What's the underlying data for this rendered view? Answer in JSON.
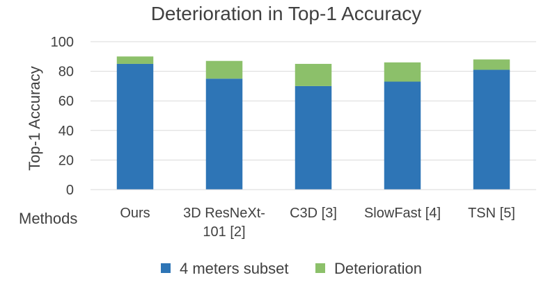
{
  "chart_data": {
    "type": "bar",
    "stacked": true,
    "title": "Deterioration in Top-1 Accuracy",
    "xlabel": "Methods",
    "ylabel": "Top-1 Accuracy",
    "ylim": [
      0,
      100
    ],
    "yticks": [
      0,
      20,
      40,
      60,
      80,
      100
    ],
    "grid": true,
    "legend_position": "bottom",
    "categories": [
      [
        "Ours"
      ],
      [
        "3D ResNeXt-",
        "101 [2]"
      ],
      [
        "C3D [3]"
      ],
      [
        "SlowFast [4]"
      ],
      [
        "TSN [5]"
      ]
    ],
    "series": [
      {
        "name": "4 meters subset",
        "color": "#2e75b6",
        "values": [
          85,
          75,
          70,
          73,
          81
        ]
      },
      {
        "name": "Deterioration",
        "color": "#8cc06a",
        "values": [
          5,
          12,
          15,
          13,
          7
        ]
      }
    ]
  }
}
